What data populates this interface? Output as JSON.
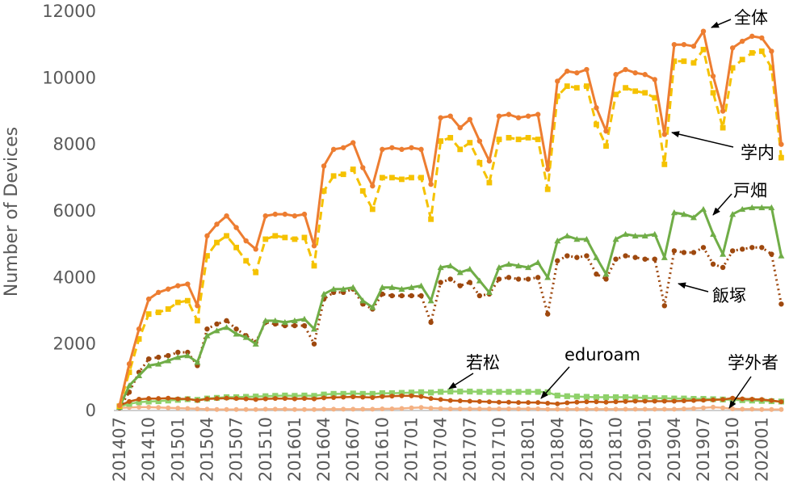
{
  "chart_data": {
    "type": "line",
    "title": "",
    "xlabel": "",
    "ylabel": "Number of Devices",
    "ylim": [
      0,
      12000
    ],
    "yticks": [
      "0",
      "2000",
      "4000",
      "6000",
      "8000",
      "10000",
      "12000"
    ],
    "xticks": [
      "201407",
      "201410",
      "201501",
      "201504",
      "201507",
      "201510",
      "201601",
      "201604",
      "201607",
      "201610",
      "201701",
      "201704",
      "201707",
      "201710",
      "201801",
      "201804",
      "201807",
      "201810",
      "201901",
      "201904",
      "201907",
      "201910",
      "202001"
    ],
    "grid": false,
    "legend": "none",
    "series": [
      {
        "name": "全体",
        "color": "#ED7D31",
        "values": [
          150,
          1400,
          2450,
          3350,
          3550,
          3650,
          3750,
          3800,
          3150,
          5250,
          5600,
          5850,
          5500,
          5100,
          4850,
          5850,
          5900,
          5900,
          5850,
          5900,
          4950,
          7350,
          7850,
          7900,
          8050,
          7300,
          6750,
          7850,
          7900,
          7850,
          7900,
          7850,
          6800,
          8800,
          8850,
          8500,
          8750,
          8100,
          7500,
          8850,
          8900,
          8800,
          8850,
          8900,
          7250,
          9900,
          10200,
          10150,
          10250,
          9100,
          8400,
          10100,
          10250,
          10150,
          10100,
          9950,
          8300,
          11000,
          11000,
          10950,
          11400,
          10050,
          9000,
          10900,
          11100,
          11250,
          11200,
          10800,
          8000
        ]
      },
      {
        "name": "学内",
        "color": "#F5C200",
        "values": [
          130,
          1150,
          2150,
          2900,
          2950,
          3050,
          3250,
          3300,
          2700,
          4650,
          5050,
          5250,
          4900,
          4500,
          4150,
          5150,
          5250,
          5200,
          5150,
          5200,
          4350,
          6600,
          7050,
          7100,
          7250,
          6600,
          6050,
          7000,
          7000,
          6950,
          7000,
          7000,
          5750,
          8100,
          8200,
          7850,
          8050,
          7450,
          6850,
          8150,
          8200,
          8150,
          8200,
          8150,
          6650,
          9450,
          9750,
          9700,
          9750,
          8600,
          7950,
          9500,
          9700,
          9600,
          9550,
          9400,
          7400,
          10500,
          10500,
          10450,
          10850,
          9550,
          8500,
          10300,
          10550,
          10750,
          10800,
          10300,
          7600
        ]
      },
      {
        "name": "戸畑",
        "color": "#70AD47",
        "values": [
          100,
          750,
          1050,
          1350,
          1400,
          1500,
          1600,
          1650,
          1450,
          2250,
          2400,
          2500,
          2300,
          2200,
          2000,
          2700,
          2700,
          2650,
          2700,
          2750,
          2450,
          3500,
          3650,
          3650,
          3700,
          3300,
          3100,
          3700,
          3700,
          3650,
          3700,
          3750,
          3300,
          4300,
          4350,
          4150,
          4250,
          3900,
          3550,
          4300,
          4400,
          4350,
          4300,
          4450,
          4000,
          5100,
          5250,
          5150,
          5150,
          4600,
          4100,
          5150,
          5300,
          5250,
          5250,
          5300,
          4600,
          5950,
          5900,
          5800,
          6050,
          5300,
          4700,
          5900,
          6050,
          6100,
          6100,
          6100,
          4650
        ]
      },
      {
        "name": "飯塚",
        "color": "#9E480E",
        "values": [
          80,
          550,
          1150,
          1550,
          1600,
          1650,
          1750,
          1750,
          1350,
          2450,
          2600,
          2700,
          2450,
          2250,
          2050,
          2650,
          2600,
          2550,
          2550,
          2550,
          2000,
          3350,
          3550,
          3550,
          3650,
          3200,
          3050,
          3500,
          3450,
          3450,
          3450,
          3450,
          2650,
          3850,
          3950,
          3750,
          3850,
          3450,
          3500,
          3950,
          4000,
          3950,
          3950,
          4000,
          2900,
          4500,
          4650,
          4600,
          4650,
          4100,
          3950,
          4550,
          4650,
          4600,
          4550,
          4550,
          3150,
          4800,
          4750,
          4750,
          4900,
          4400,
          4300,
          4800,
          4850,
          4900,
          4900,
          4700,
          3200
        ]
      },
      {
        "name": "若松",
        "color": "#8FD16B",
        "values": [
          120,
          200,
          250,
          270,
          280,
          300,
          320,
          340,
          320,
          360,
          380,
          400,
          400,
          410,
          420,
          430,
          440,
          450,
          440,
          450,
          440,
          480,
          500,
          500,
          510,
          500,
          500,
          520,
          520,
          530,
          540,
          550,
          540,
          560,
          570,
          570,
          570,
          560,
          560,
          560,
          560,
          560,
          560,
          560,
          550,
          450,
          430,
          420,
          410,
          400,
          400,
          400,
          400,
          390,
          380,
          370,
          370,
          360,
          360,
          350,
          350,
          340,
          330,
          320,
          310,
          300,
          290,
          280,
          270
        ]
      },
      {
        "name": "eduroam",
        "color": "#C55A11",
        "values": [
          150,
          270,
          340,
          360,
          360,
          370,
          350,
          350,
          300,
          350,
          360,
          370,
          360,
          350,
          330,
          350,
          360,
          360,
          350,
          360,
          350,
          380,
          390,
          400,
          410,
          400,
          390,
          420,
          430,
          440,
          440,
          420,
          360,
          330,
          300,
          290,
          280,
          270,
          260,
          250,
          250,
          240,
          240,
          240,
          220,
          200,
          230,
          250,
          260,
          260,
          250,
          260,
          270,
          280,
          280,
          280,
          280,
          280,
          290,
          300,
          310,
          320,
          330,
          370,
          350,
          340,
          330,
          300,
          260
        ]
      },
      {
        "name": "学外者",
        "color": "#F4B183",
        "values": [
          80,
          90,
          100,
          100,
          90,
          80,
          70,
          60,
          50,
          40,
          30,
          30,
          30,
          30,
          30,
          40,
          40,
          40,
          30,
          30,
          30,
          40,
          40,
          40,
          40,
          40,
          40,
          50,
          50,
          60,
          80,
          90,
          70,
          60,
          50,
          50,
          50,
          50,
          50,
          50,
          50,
          50,
          50,
          50,
          40,
          40,
          40,
          40,
          40,
          40,
          40,
          40,
          40,
          40,
          40,
          40,
          40,
          40,
          50,
          60,
          80,
          100,
          80,
          50,
          40,
          40,
          30,
          30,
          30
        ]
      }
    ],
    "annotations": [
      "全体",
      "学内",
      "戸畑",
      "飯塚",
      "若松",
      "eduroam",
      "学外者"
    ]
  }
}
